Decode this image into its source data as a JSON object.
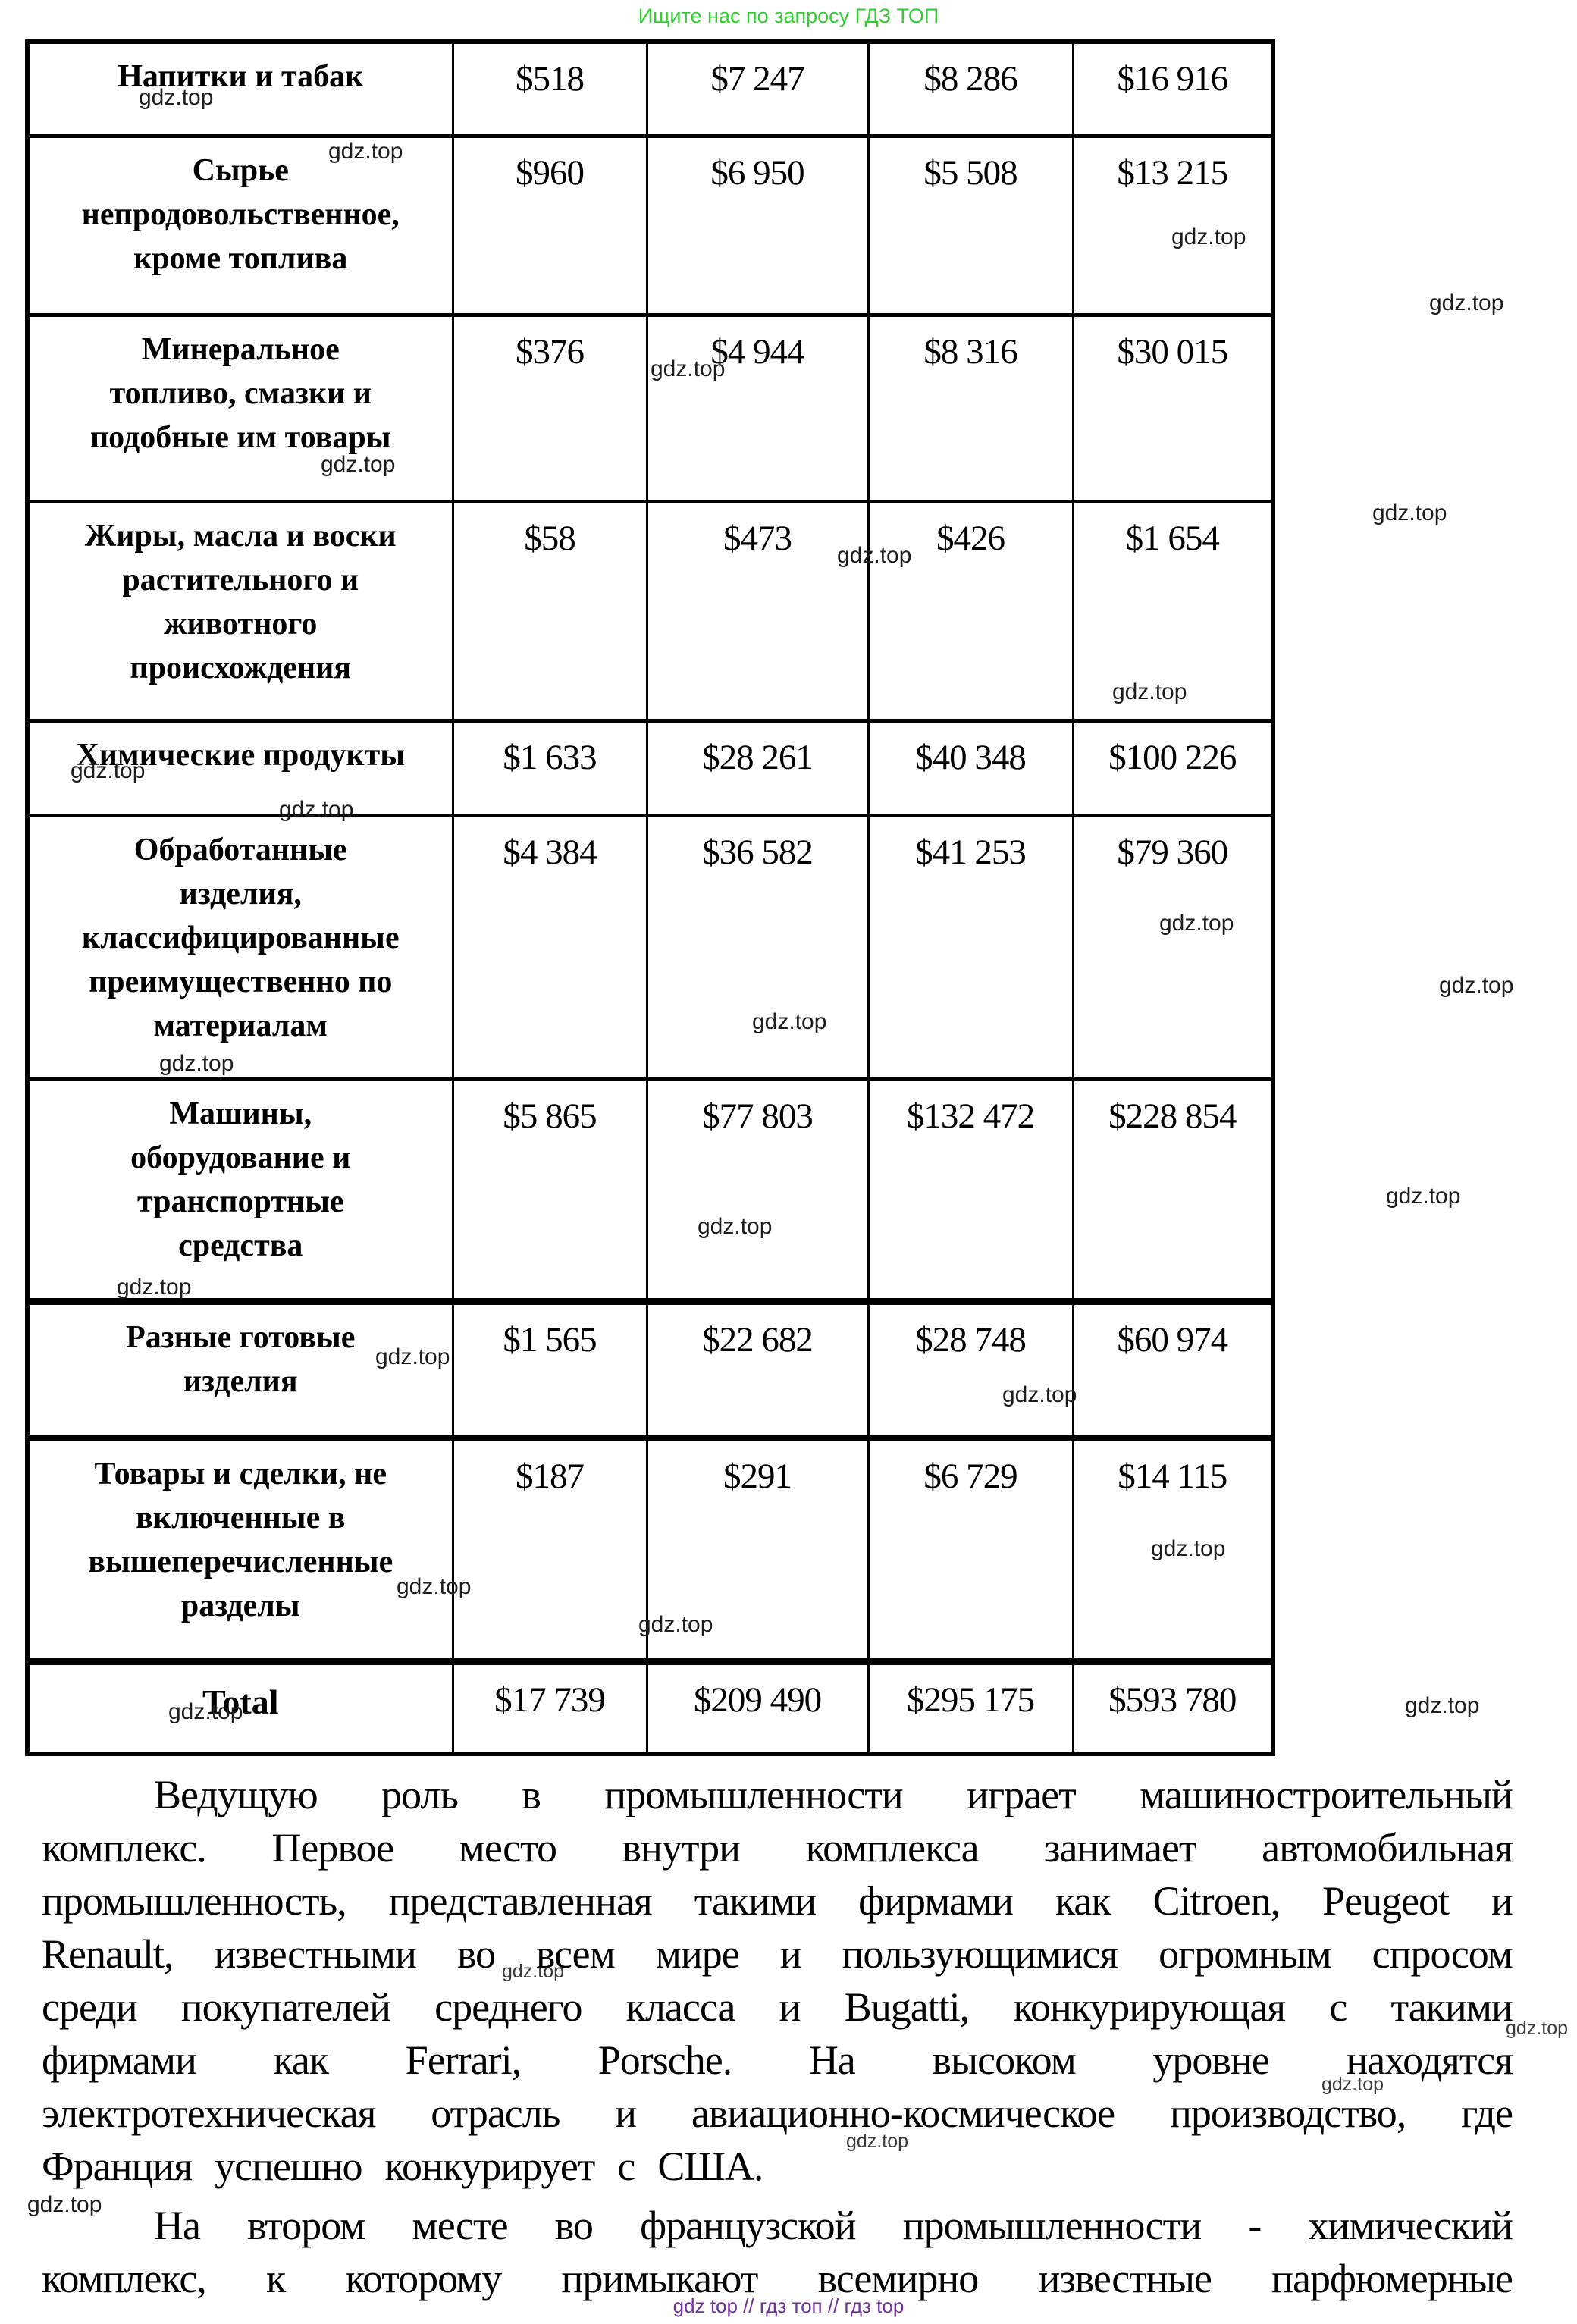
{
  "header": {
    "promo": "Ищите нас по запросу ГДЗ ТОП"
  },
  "watermark": {
    "tag": "gdz.top"
  },
  "colors": {
    "promo_green": "#33cc33",
    "footer_purple": "#7030a0"
  },
  "table": {
    "rows": [
      {
        "label_lines": [
          "Напитки и табак"
        ],
        "values": [
          "$518",
          "$7 247",
          "$8 286",
          "$16 916"
        ]
      },
      {
        "label_lines": [
          "Сырье",
          "непродовольственное,",
          "кроме топлива"
        ],
        "values": [
          "$960",
          "$6 950",
          "$5 508",
          "$13 215"
        ]
      },
      {
        "label_lines": [
          "Минеральное",
          "топливо, смазки и",
          "подобные им товары"
        ],
        "values": [
          "$376",
          "$4 944",
          "$8 316",
          "$30 015"
        ]
      },
      {
        "label_lines": [
          "Жиры, масла и воски",
          "растительного и",
          "животного",
          "происхождения"
        ],
        "values": [
          "$58",
          "$473",
          "$426",
          "$1 654"
        ]
      },
      {
        "label_lines": [
          "Химические продукты"
        ],
        "values": [
          "$1 633",
          "$28 261",
          "$40 348",
          "$100 226"
        ]
      },
      {
        "label_lines": [
          "Обработанные",
          "изделия,",
          "классифицированные",
          "преимущественно по",
          "материалам"
        ],
        "values": [
          "$4 384",
          "$36 582",
          "$41 253",
          "$79 360"
        ]
      },
      {
        "label_lines": [
          "Машины,",
          "оборудование и",
          "транспортные",
          "средства"
        ],
        "values": [
          "$5 865",
          "$77 803",
          "$132 472",
          "$228 854"
        ]
      },
      {
        "label_lines": [
          "Разные готовые",
          "изделия"
        ],
        "values": [
          "$1 565",
          "$22 682",
          "$28 748",
          "$60 974"
        ]
      },
      {
        "label_lines": [
          "Товары и сделки, не",
          "включенные в",
          "вышеперечисленные",
          "разделы"
        ],
        "values": [
          "$187",
          "$291",
          "$6 729",
          "$14 115"
        ]
      },
      {
        "label_lines": [
          "Total"
        ],
        "values": [
          "$17 739",
          "$209 490",
          "$295 175",
          "$593 780"
        ]
      }
    ]
  },
  "article": {
    "lines": [
      "Ведущую роль в промышленности играет машиностроительный",
      "комплекс. Первое место внутри комплекса занимает автомобильная",
      "промышленность, представленная такими фирмами как Citroen, Peugeot и",
      "Renault, известными во всем мире и пользующимися огромным спросом",
      "среди покупателей среднего класса и Bugatti, конкурирующая с такими",
      "фирмами как Ferrari, Porsche. На высоком уровне находятся",
      "электротехническая отрасль и авиационно-космическое производство, где",
      "Франция успешно конкурирует с США.",
      "На втором месте во французской промышленности - химический",
      "комплекс, к которому примыкают всемирно известные парфюмерные"
    ]
  },
  "footer": {
    "text": "gdz top // гдз топ // гдз top"
  }
}
